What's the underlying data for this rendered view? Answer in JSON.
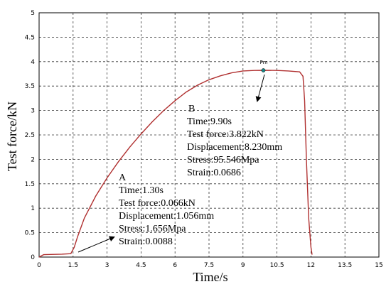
{
  "chart_data": {
    "type": "line",
    "xlabel": "Time/s",
    "ylabel": "Test force/kN",
    "xlim": [
      0,
      15
    ],
    "ylim": [
      0,
      5
    ],
    "xticks": [
      "0",
      "1.5",
      "3",
      "4.5",
      "6",
      "7.5",
      "9",
      "10.5",
      "12",
      "13.5",
      "15"
    ],
    "yticks": [
      "0",
      "0.5",
      "1",
      "1.5",
      "2",
      "2.5",
      "3",
      "3.5",
      "4",
      "4.5",
      "5"
    ],
    "grid": true,
    "line_color": "#b03030",
    "series": [
      {
        "x": [
          0,
          0.2,
          1.0,
          1.4,
          1.55,
          1.7,
          2.0,
          2.5,
          3.0,
          3.5,
          4.0,
          4.5,
          5.0,
          5.5,
          6.0,
          6.5,
          7.0,
          7.5,
          8.0,
          8.5,
          9.0,
          9.5,
          9.9,
          10.5,
          11.0,
          11.5,
          11.65,
          11.72,
          11.8,
          11.9,
          12.0,
          12.05
        ],
        "y": [
          0,
          0.05,
          0.06,
          0.07,
          0.2,
          0.42,
          0.8,
          1.25,
          1.62,
          1.95,
          2.25,
          2.52,
          2.77,
          3.0,
          3.2,
          3.38,
          3.52,
          3.63,
          3.71,
          3.77,
          3.81,
          3.82,
          3.822,
          3.82,
          3.81,
          3.79,
          3.7,
          3.2,
          2.0,
          0.8,
          0.2,
          0.05
        ]
      }
    ],
    "marker": {
      "label": "Pm",
      "x": 9.9,
      "y": 3.822,
      "color": "#1a8a8a"
    },
    "annotations": [
      {
        "id": "A",
        "letter": "A",
        "lines": [
          "Time:1.30s",
          "Test force:0.066kN",
          "Displacement:1.056mm",
          "Stress:1.656Mpa",
          "Strain:0.0088"
        ]
      },
      {
        "id": "B",
        "letter": "B",
        "lines": [
          "Time:9.90s",
          "Test force:3.822kN",
          "Displacement:8.230mm",
          "Stress:95.546Mpa",
          "Strain:0.0686"
        ]
      }
    ]
  }
}
